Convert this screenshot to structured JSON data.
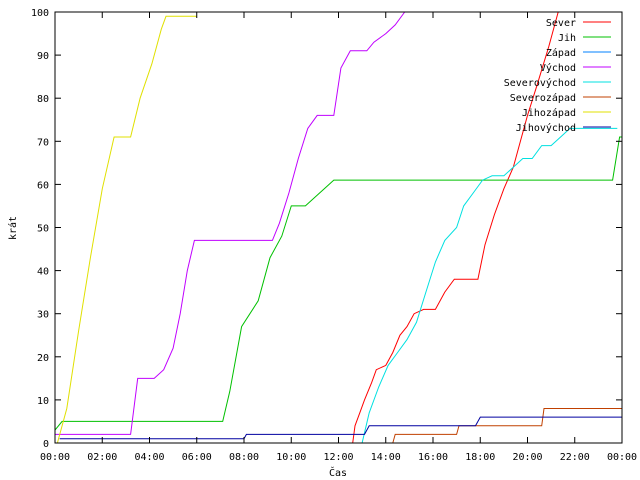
{
  "chart_data": {
    "type": "line",
    "xlabel": "Čas",
    "ylabel": "krát",
    "xlim": [
      0,
      24
    ],
    "ylim": [
      0,
      100
    ],
    "x_ticks": [
      0,
      2,
      4,
      6,
      8,
      10,
      12,
      14,
      16,
      18,
      20,
      22,
      24
    ],
    "x_tick_labels": [
      "00:00",
      "02:00",
      "04:00",
      "06:00",
      "08:00",
      "10:00",
      "12:00",
      "14:00",
      "16:00",
      "18:00",
      "20:00",
      "22:00",
      "00:00"
    ],
    "y_ticks": [
      0,
      10,
      20,
      30,
      40,
      50,
      60,
      70,
      80,
      90,
      100
    ],
    "y_tick_labels": [
      "0",
      "10",
      "20",
      "30",
      "40",
      "50",
      "60",
      "70",
      "80",
      "90",
      "100"
    ],
    "grid": false,
    "legend_position": "top-right",
    "series": [
      {
        "name": "Sever",
        "color": "#ff0000",
        "points": [
          [
            12.6,
            0
          ],
          [
            12.7,
            4
          ],
          [
            12.9,
            7
          ],
          [
            13.1,
            10
          ],
          [
            13.4,
            14
          ],
          [
            13.6,
            17
          ],
          [
            14.0,
            18
          ],
          [
            14.3,
            21
          ],
          [
            14.6,
            25
          ],
          [
            14.9,
            27
          ],
          [
            15.2,
            30
          ],
          [
            15.6,
            31
          ],
          [
            16.1,
            31
          ],
          [
            16.5,
            35
          ],
          [
            16.9,
            38
          ],
          [
            17.9,
            38
          ],
          [
            18.2,
            46
          ],
          [
            18.6,
            53
          ],
          [
            19.0,
            59
          ],
          [
            19.4,
            64
          ],
          [
            19.7,
            70
          ],
          [
            20.0,
            76
          ],
          [
            20.4,
            83
          ],
          [
            20.9,
            92
          ],
          [
            21.3,
            100
          ]
        ]
      },
      {
        "name": "Jih",
        "color": "#00c000",
        "points": [
          [
            0.0,
            3
          ],
          [
            0.3,
            5
          ],
          [
            7.1,
            5
          ],
          [
            7.4,
            12
          ],
          [
            7.9,
            27
          ],
          [
            8.6,
            33
          ],
          [
            9.1,
            43
          ],
          [
            9.6,
            48
          ],
          [
            10.0,
            55
          ],
          [
            10.6,
            55
          ],
          [
            11.0,
            57
          ],
          [
            11.4,
            59
          ],
          [
            11.8,
            61
          ],
          [
            23.6,
            61
          ],
          [
            23.9,
            71
          ],
          [
            24.0,
            71
          ]
        ]
      },
      {
        "name": "Západ",
        "color": "#0080ff",
        "points": [
          [
            0.0,
            0
          ],
          [
            24.0,
            0
          ]
        ]
      },
      {
        "name": "Východ",
        "color": "#c000ff",
        "points": [
          [
            0.0,
            2
          ],
          [
            3.2,
            2
          ],
          [
            3.5,
            15
          ],
          [
            4.2,
            15
          ],
          [
            4.6,
            17
          ],
          [
            5.0,
            22
          ],
          [
            5.3,
            30
          ],
          [
            5.6,
            40
          ],
          [
            5.9,
            47
          ],
          [
            9.2,
            47
          ],
          [
            9.5,
            51
          ],
          [
            9.9,
            58
          ],
          [
            10.3,
            66
          ],
          [
            10.7,
            73
          ],
          [
            11.1,
            76
          ],
          [
            11.8,
            76
          ],
          [
            12.1,
            87
          ],
          [
            12.5,
            91
          ],
          [
            13.2,
            91
          ],
          [
            13.5,
            93
          ],
          [
            14.0,
            95
          ],
          [
            14.4,
            97
          ],
          [
            14.8,
            100
          ]
        ]
      },
      {
        "name": "Severovýchod",
        "color": "#00e0e0",
        "points": [
          [
            13.0,
            0
          ],
          [
            13.3,
            7
          ],
          [
            13.7,
            13
          ],
          [
            14.1,
            18
          ],
          [
            14.5,
            21
          ],
          [
            14.9,
            24
          ],
          [
            15.3,
            28
          ],
          [
            15.7,
            35
          ],
          [
            16.1,
            42
          ],
          [
            16.5,
            47
          ],
          [
            17.0,
            50
          ],
          [
            17.3,
            55
          ],
          [
            17.7,
            58
          ],
          [
            18.1,
            61
          ],
          [
            18.5,
            62
          ],
          [
            19.0,
            62
          ],
          [
            19.4,
            64
          ],
          [
            19.8,
            66
          ],
          [
            20.2,
            66
          ],
          [
            20.6,
            69
          ],
          [
            21.0,
            69
          ],
          [
            21.4,
            71
          ],
          [
            21.8,
            73
          ],
          [
            23.8,
            73
          ]
        ]
      },
      {
        "name": "Severozápad",
        "color": "#c04000",
        "points": [
          [
            11.2,
            0
          ],
          [
            14.3,
            0
          ],
          [
            14.4,
            2
          ],
          [
            17.0,
            2
          ],
          [
            17.1,
            4
          ],
          [
            20.6,
            4
          ],
          [
            20.7,
            8
          ],
          [
            24.0,
            8
          ]
        ]
      },
      {
        "name": "Jihozápad",
        "color": "#e0e000",
        "points": [
          [
            0.1,
            0
          ],
          [
            0.5,
            8
          ],
          [
            1.0,
            26
          ],
          [
            1.5,
            43
          ],
          [
            2.0,
            59
          ],
          [
            2.5,
            71
          ],
          [
            3.2,
            71
          ],
          [
            3.6,
            80
          ],
          [
            4.1,
            88
          ],
          [
            4.5,
            96
          ],
          [
            4.7,
            99
          ],
          [
            6.0,
            99
          ]
        ]
      },
      {
        "name": "Jihovýchod",
        "color": "#0000a0",
        "points": [
          [
            0.2,
            1
          ],
          [
            8.0,
            1
          ],
          [
            8.1,
            2
          ],
          [
            13.1,
            2
          ],
          [
            13.3,
            4
          ],
          [
            17.8,
            4
          ],
          [
            18.0,
            6
          ],
          [
            24.0,
            6
          ]
        ]
      }
    ]
  }
}
